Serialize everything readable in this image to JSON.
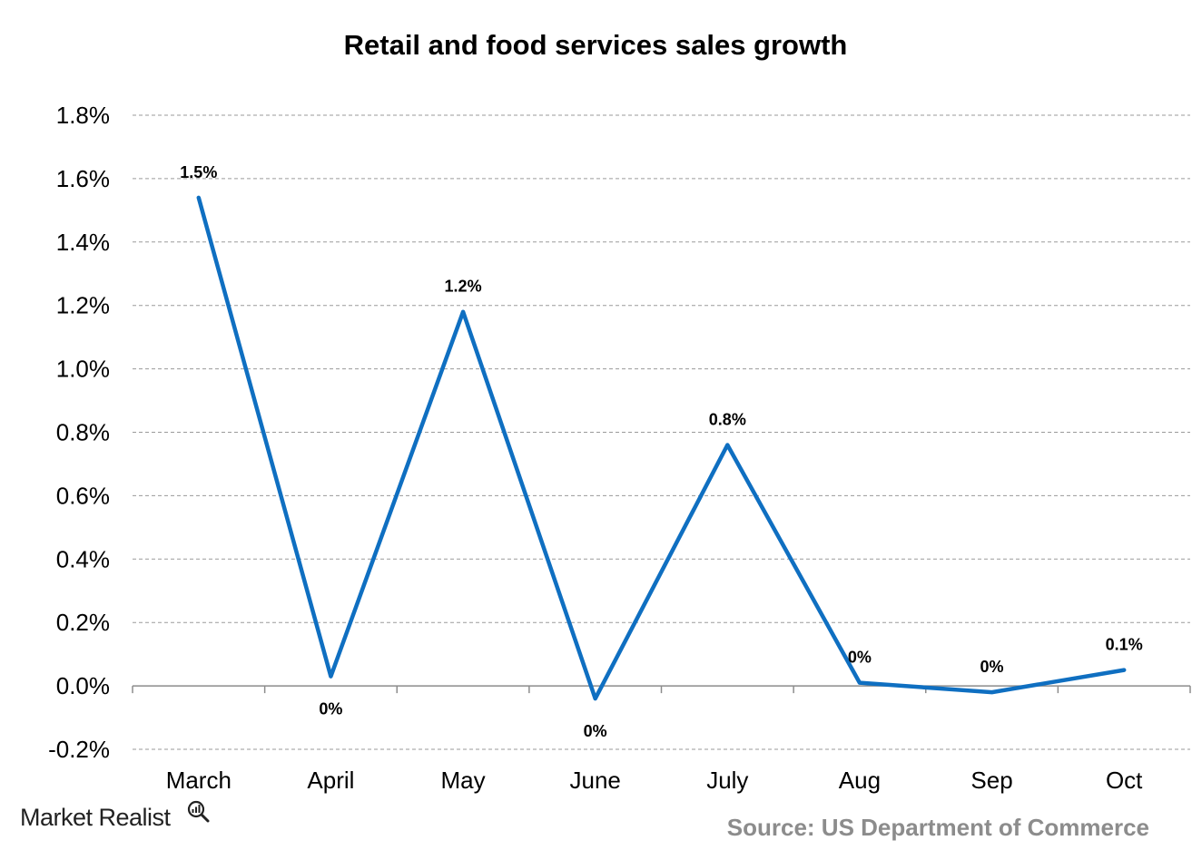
{
  "chart_data": {
    "type": "line",
    "title": "Retail and food services sales growth",
    "categories": [
      "March",
      "April",
      "May",
      "June",
      "July",
      "Aug",
      "Sep",
      "Oct"
    ],
    "series": [
      {
        "values": [
          1.54,
          0.03,
          1.18,
          -0.04,
          0.76,
          0.01,
          -0.02,
          0.05
        ],
        "data_labels": [
          "1.5%",
          "0%",
          "1.2%",
          "0%",
          "0.8%",
          "0%",
          "0%",
          "0.1%"
        ],
        "color": "#0f6fc1"
      }
    ],
    "ylim": [
      -0.2,
      1.8
    ],
    "yticks": [
      -0.2,
      0.0,
      0.2,
      0.4,
      0.6,
      0.8,
      1.0,
      1.2,
      1.4,
      1.6,
      1.8
    ],
    "ytick_labels": [
      "-0.2%",
      "0.0%",
      "0.2%",
      "0.4%",
      "0.6%",
      "0.8%",
      "1.0%",
      "1.2%",
      "1.4%",
      "1.6%",
      "1.8%"
    ],
    "xlabel": "",
    "ylabel": "",
    "grid": true,
    "legend": "none"
  },
  "footer": {
    "brand": "Market Realist",
    "source": "Source: US Department of Commerce"
  },
  "colors": {
    "line": "#0f6fc1",
    "source_text": "#8c8c8c"
  },
  "icons": {
    "brand": "magnifier-chart-icon"
  }
}
